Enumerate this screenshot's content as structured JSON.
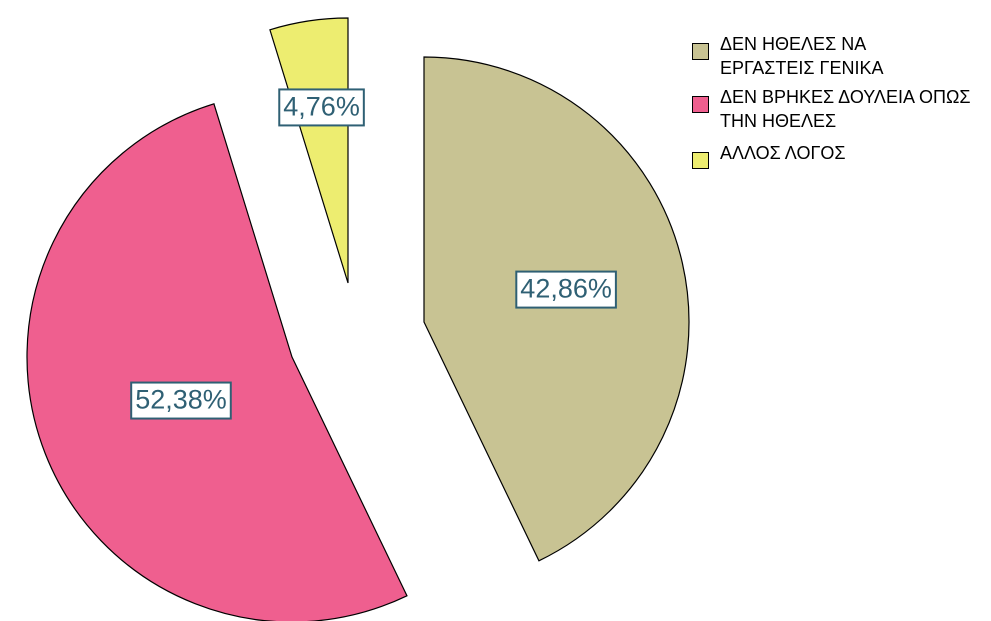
{
  "chart_data": {
    "type": "pie",
    "categories": [
      "ΔΕΝ ΗΘΕΛΕΣ ΝΑ ΕΡΓΑΣΤΕΙΣ ΓΕΝΙΚΑ",
      "ΔΕΝ ΒΡΗΚΕΣ ΔΟΥΛΕΙΑ ΟΠΩΣ ΤΗΝ ΗΘΕΛΕΣ",
      "ΑΛΛΟΣ ΛΟΓΟΣ"
    ],
    "values": [
      42.86,
      52.38,
      4.76
    ],
    "value_labels": [
      "42,86%",
      "52,38%",
      "4,76%"
    ],
    "colors": [
      "#c8c393",
      "#ef5f8f",
      "#eded70"
    ],
    "legend": "top-right"
  }
}
